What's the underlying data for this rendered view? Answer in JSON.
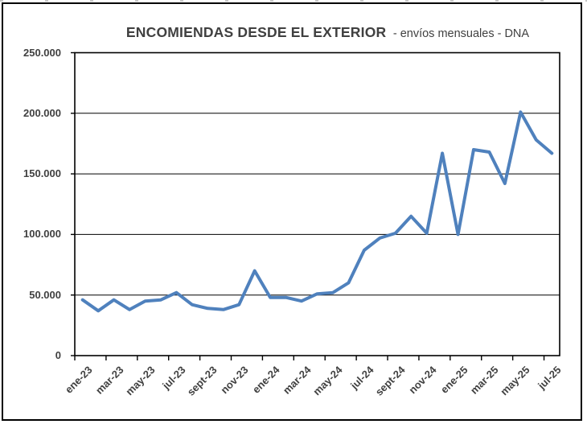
{
  "title": {
    "main": "ENCOMIENDAS DESDE EL EXTERIOR",
    "subtitle": "- envíos mensuales - DNA"
  },
  "colors": {
    "line": "#4F81BD",
    "text": "#404040",
    "grid": "#000000",
    "frame": "#000000",
    "background": "#FFFFFF"
  },
  "chart_data": {
    "type": "line",
    "title": "ENCOMIENDAS DESDE EL EXTERIOR - envíos mensuales - DNA",
    "xlabel": "",
    "ylabel": "",
    "ylim": [
      0,
      250000
    ],
    "y_tick_values": [
      0,
      50000,
      100000,
      150000,
      200000,
      250000
    ],
    "y_tick_labels": [
      "0",
      "50.000",
      "100.000",
      "150.000",
      "200.000",
      "250.000"
    ],
    "grid": true,
    "legend": false,
    "x": [
      "ene-23",
      "feb-23",
      "mar-23",
      "abr-23",
      "may-23",
      "jun-23",
      "jul-23",
      "ago-23",
      "sept-23",
      "oct-23",
      "nov-23",
      "dic-23",
      "ene-24",
      "feb-24",
      "mar-24",
      "abr-24",
      "may-24",
      "jun-24",
      "jul-24",
      "ago-24",
      "sept-24",
      "oct-24",
      "nov-24",
      "dic-24",
      "ene-25",
      "feb-25",
      "mar-25",
      "abr-25",
      "may-25",
      "jun-25",
      "jul-25"
    ],
    "x_tick_labels_shown": [
      "ene-23",
      "mar-23",
      "may-23",
      "jul-23",
      "sept-23",
      "nov-23",
      "ene-24",
      "mar-24",
      "may-24",
      "jul-24",
      "sept-24",
      "nov-24",
      "ene-25",
      "mar-25",
      "may-25",
      "jul-25"
    ],
    "series": [
      {
        "name": "Encomiendas desde el exterior (envíos mensuales)",
        "values": [
          46000,
          37000,
          46000,
          38000,
          45000,
          46000,
          52000,
          42000,
          39000,
          38000,
          42000,
          70000,
          48000,
          48000,
          45000,
          51000,
          52000,
          60000,
          87000,
          97000,
          101000,
          115000,
          101000,
          167000,
          100000,
          170000,
          168000,
          142000,
          201000,
          178000,
          167000
        ]
      }
    ]
  }
}
